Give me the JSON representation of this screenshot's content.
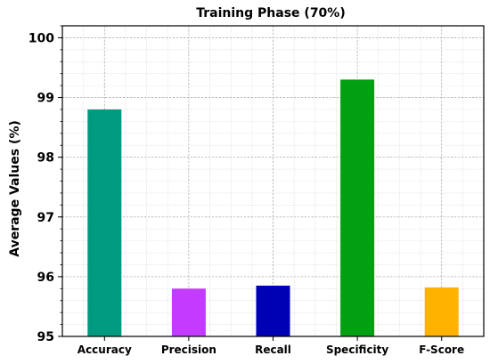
{
  "chart_data": {
    "type": "bar",
    "title": "Training Phase (70%)",
    "xlabel": "",
    "ylabel": "Average Values (%)",
    "categories": [
      "Accuracy",
      "Precision",
      "Recall",
      "Specificity",
      "F-Score"
    ],
    "values": [
      98.8,
      95.8,
      95.85,
      99.3,
      95.82
    ],
    "colors": [
      "#009a80",
      "#c23bff",
      "#0000b4",
      "#00a012",
      "#ffb300"
    ],
    "ylim": [
      95,
      100.2
    ],
    "yticks": [
      "95",
      "96",
      "97",
      "98",
      "99",
      "100"
    ],
    "grid": true
  }
}
